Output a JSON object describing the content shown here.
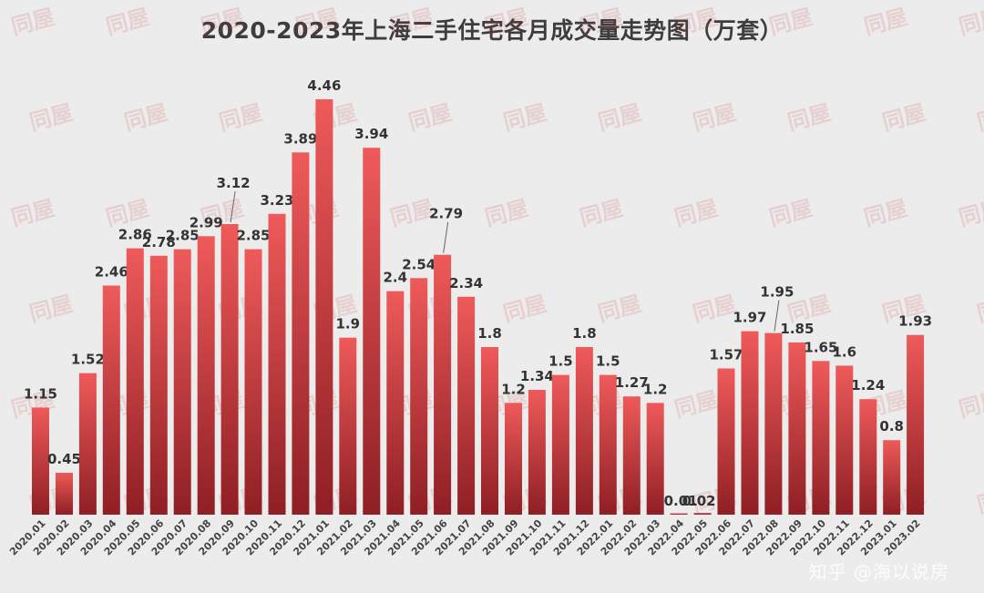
{
  "chart_data": {
    "type": "bar",
    "title": "2020-2023年上海二手住宅各月成交量走势图（万套）",
    "categories": [
      "2020.01",
      "2020.02",
      "2020.03",
      "2020.04",
      "2020.05",
      "2020.06",
      "2020.07",
      "2020.08",
      "2020.09",
      "2020.10",
      "2020.11",
      "2020.12",
      "2021.01",
      "2021.02",
      "2021.03",
      "2021.04",
      "2021.05",
      "2021.06",
      "2021.07",
      "2021.08",
      "2021.09",
      "2021.10",
      "2021.11",
      "2021.12",
      "2022.01",
      "2022.02",
      "2022.03",
      "2022.04",
      "2022.05",
      "2022.06",
      "2022.07",
      "2022.08",
      "2022.09",
      "2022.10",
      "2022.11",
      "2022.12",
      "2023.01",
      "2023.02"
    ],
    "values": [
      1.15,
      0.45,
      1.52,
      2.46,
      2.86,
      2.78,
      2.85,
      2.99,
      3.12,
      2.85,
      3.23,
      3.89,
      4.46,
      1.9,
      3.94,
      2.4,
      2.54,
      2.79,
      2.34,
      1.8,
      1.2,
      1.34,
      1.5,
      1.8,
      1.5,
      1.27,
      1.2,
      0.01,
      0.02,
      1.57,
      1.97,
      1.95,
      1.85,
      1.65,
      1.6,
      1.24,
      0.8,
      1.93
    ],
    "labels": [
      "1.15",
      "0.45",
      "1.52",
      "2.46",
      "2.86",
      "2.78",
      "2.85",
      "2.99",
      "3.12",
      "2.85",
      "3.23",
      "3.89",
      "4.46",
      "1.9",
      "3.94",
      "2.4",
      "2.54",
      "2.79",
      "2.34",
      "1.8",
      "1.2",
      "1.34",
      "1.5",
      "1.8",
      "1.5",
      "1.27",
      "1.2",
      "0.01",
      "0.02",
      "1.57",
      "1.97",
      "1.95",
      "1.85",
      "1.65",
      "1.6",
      "1.24",
      "0.8",
      "1.93"
    ],
    "ylim": [
      0,
      4.6
    ],
    "grid": false,
    "legend": "none",
    "colors": {
      "bar_top": "#ef5a5a",
      "bar_bottom": "#8e1f24",
      "label": "#333333",
      "tick": "#444444"
    }
  },
  "watermark_text": "知乎 @海以说房",
  "logo_text": "同屋"
}
